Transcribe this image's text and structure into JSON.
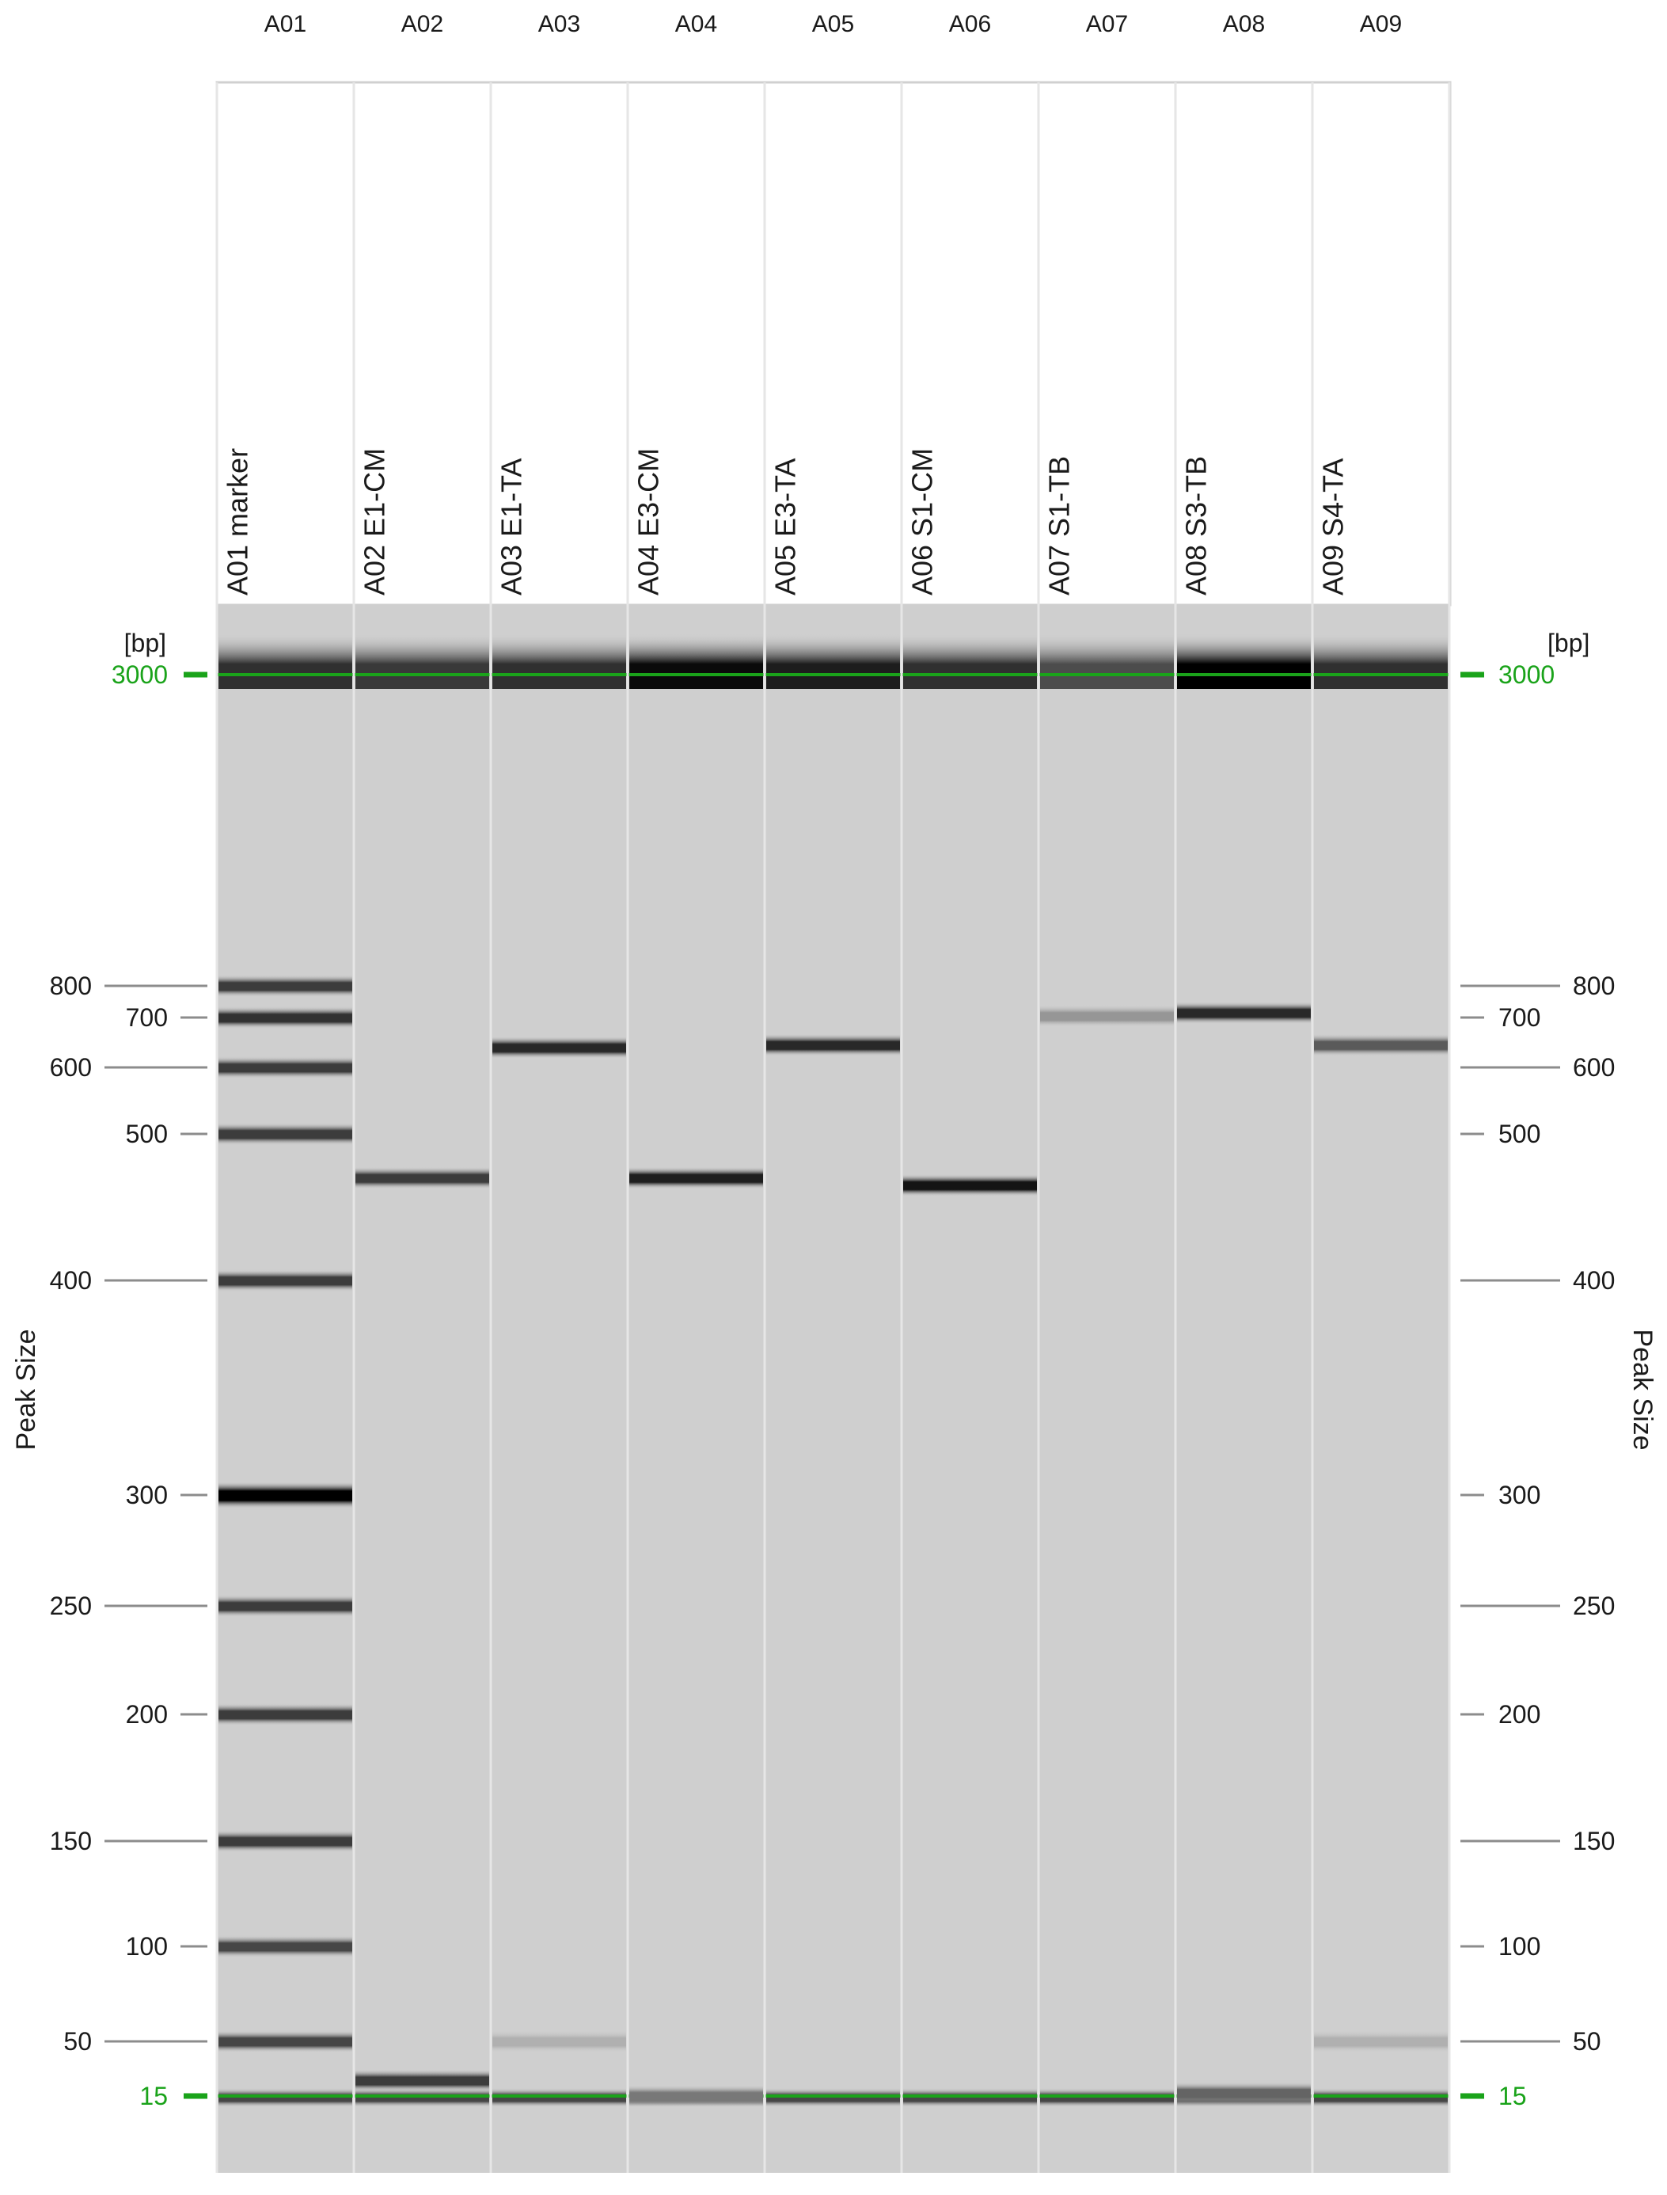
{
  "axis": {
    "unit_label": "[bp]",
    "title": "Peak Size",
    "ladder_green": [
      "3000",
      "15"
    ],
    "ladder_gray": [
      "800",
      "700",
      "600",
      "500",
      "400",
      "300",
      "250",
      "200",
      "150",
      "100",
      "50"
    ]
  },
  "colors": {
    "gel_background": "#cfcfcf",
    "lane_border": "#ffffff",
    "marker_green": "#1aa31a",
    "tick_gray": "#8c8c8c",
    "label_dark": "#1a1a1a"
  },
  "lanes": [
    {
      "id": "A01",
      "label": "A01 marker"
    },
    {
      "id": "A02",
      "label": "A02 E1-CM"
    },
    {
      "id": "A03",
      "label": "A03 E1-TA"
    },
    {
      "id": "A04",
      "label": "A04 E3-CM"
    },
    {
      "id": "A05",
      "label": "A05 E3-TA"
    },
    {
      "id": "A06",
      "label": "A06 S1-CM"
    },
    {
      "id": "A07",
      "label": "A07 S1-TB"
    },
    {
      "id": "A08",
      "label": "A08 S3-TB"
    },
    {
      "id": "A09",
      "label": "A09 S4-TA"
    }
  ],
  "chart_data": {
    "type": "gel_electrophoresis",
    "unit": "bp",
    "ladder_bp": [
      3000,
      800,
      700,
      600,
      500,
      400,
      300,
      250,
      200,
      150,
      100,
      50,
      15
    ],
    "upper_marker_bp": 3000,
    "lower_marker_bp": 15,
    "bands": [
      {
        "lane": "A01",
        "bp": 800,
        "intensity": 0.7
      },
      {
        "lane": "A01",
        "bp": 700,
        "intensity": 0.75
      },
      {
        "lane": "A01",
        "bp": 600,
        "intensity": 0.7
      },
      {
        "lane": "A01",
        "bp": 500,
        "intensity": 0.7
      },
      {
        "lane": "A01",
        "bp": 400,
        "intensity": 0.7
      },
      {
        "lane": "A01",
        "bp": 300,
        "intensity": 1.0
      },
      {
        "lane": "A01",
        "bp": 250,
        "intensity": 0.7
      },
      {
        "lane": "A01",
        "bp": 200,
        "intensity": 0.7
      },
      {
        "lane": "A01",
        "bp": 150,
        "intensity": 0.7
      },
      {
        "lane": "A01",
        "bp": 100,
        "intensity": 0.65
      },
      {
        "lane": "A01",
        "bp": 50,
        "intensity": 0.65
      },
      {
        "lane": "A02",
        "bp": 470,
        "intensity": 0.7
      },
      {
        "lane": "A02",
        "bp": 25,
        "intensity": 0.7
      },
      {
        "lane": "A03",
        "bp": 640,
        "intensity": 0.8
      },
      {
        "lane": "A04",
        "bp": 470,
        "intensity": 0.85
      },
      {
        "lane": "A05",
        "bp": 645,
        "intensity": 0.8
      },
      {
        "lane": "A06",
        "bp": 465,
        "intensity": 0.9
      },
      {
        "lane": "A07",
        "bp": 705,
        "intensity": 0.25
      },
      {
        "lane": "A08",
        "bp": 715,
        "intensity": 0.8
      },
      {
        "lane": "A09",
        "bp": 645,
        "intensity": 0.55
      },
      {
        "lane": "A03",
        "bp": 50,
        "intensity": 0.12
      },
      {
        "lane": "A09",
        "bp": 50,
        "intensity": 0.12
      },
      {
        "lane": "A08",
        "bp": 17,
        "intensity": 0.5
      },
      {
        "lane": "A04",
        "bp": 15,
        "intensity": 0.4
      }
    ],
    "top_band_intensity": {
      "A01": 0.75,
      "A02": 0.7,
      "A03": 0.75,
      "A04": 0.95,
      "A05": 0.85,
      "A06": 0.75,
      "A07": 0.6,
      "A08": 1.0,
      "A09": 0.75
    }
  }
}
